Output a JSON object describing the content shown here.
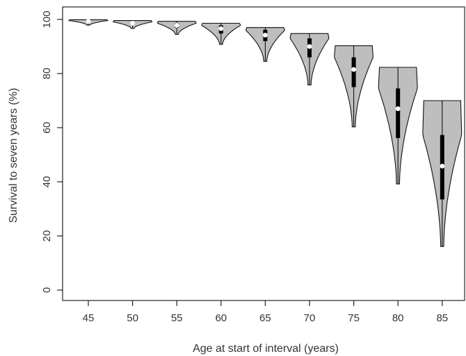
{
  "chart_data": {
    "type": "violin",
    "title": "",
    "xlabel": "Age at start of interval (years)",
    "ylabel": "Survival to seven years (%)",
    "categories": [
      "45",
      "50",
      "55",
      "60",
      "65",
      "70",
      "75",
      "80",
      "85"
    ],
    "ylim": [
      0,
      100
    ],
    "yticks": [
      0,
      20,
      40,
      60,
      80,
      100
    ],
    "grid": false,
    "legend": "none",
    "violins": [
      {
        "category": "45",
        "min": 97.9,
        "max": 99.9,
        "q1": 99.0,
        "median": 99.3,
        "q3": 99.6
      },
      {
        "category": "50",
        "min": 96.7,
        "max": 99.6,
        "q1": 98.0,
        "median": 98.6,
        "q3": 99.1
      },
      {
        "category": "55",
        "min": 94.5,
        "max": 99.3,
        "q1": 96.9,
        "median": 97.8,
        "q3": 98.6
      },
      {
        "category": "60",
        "min": 90.8,
        "max": 98.6,
        "q1": 94.8,
        "median": 96.6,
        "q3": 97.8
      },
      {
        "category": "65",
        "min": 84.5,
        "max": 97.0,
        "q1": 92.0,
        "median": 94.2,
        "q3": 96.2
      },
      {
        "category": "70",
        "min": 75.8,
        "max": 94.8,
        "q1": 86.0,
        "median": 90.0,
        "q3": 93.0
      },
      {
        "category": "75",
        "min": 60.3,
        "max": 90.3,
        "q1": 75.0,
        "median": 81.5,
        "q3": 86.0
      },
      {
        "category": "80",
        "min": 39.2,
        "max": 82.3,
        "q1": 56.2,
        "median": 67.0,
        "q3": 74.5
      },
      {
        "category": "85",
        "min": 16.1,
        "max": 70.0,
        "q1": 33.5,
        "median": 45.8,
        "q3": 57.3
      }
    ],
    "colors": {
      "fill": "#bebebe",
      "outline": "#111111",
      "box": "#000000",
      "median": "#ffffff"
    }
  }
}
